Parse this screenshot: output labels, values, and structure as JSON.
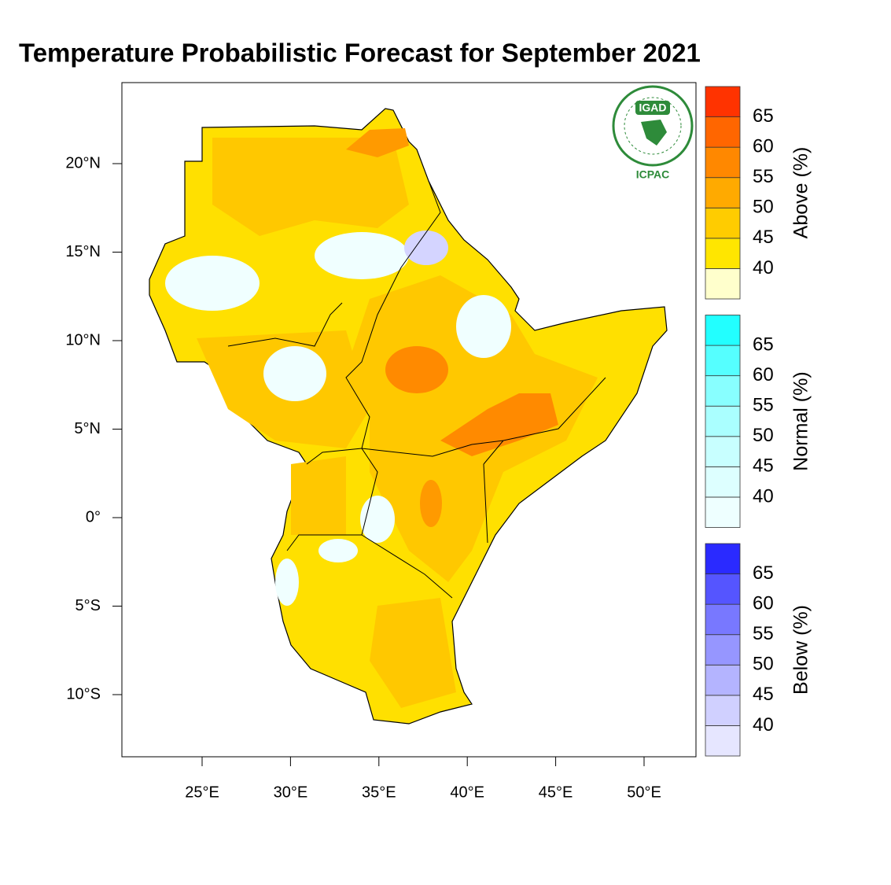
{
  "title": "Temperature Probabilistic Forecast for September 2021",
  "lat_ticks": [
    "20°N",
    "15°N",
    "10°N",
    "5°N",
    "0°",
    "5°S",
    "10°S"
  ],
  "lon_ticks": [
    "25°E",
    "30°E",
    "35°E",
    "40°E",
    "45°E",
    "50°E"
  ],
  "legends": [
    {
      "label": "Above (%)",
      "ticks": [
        "40",
        "45",
        "50",
        "55",
        "60",
        "65"
      ],
      "colors": [
        "#ffffcc",
        "#ffe600",
        "#ffcc00",
        "#ffaa00",
        "#ff8800",
        "#ff6600",
        "#ff3300"
      ]
    },
    {
      "label": "Normal (%)",
      "ticks": [
        "40",
        "45",
        "50",
        "55",
        "60",
        "65"
      ],
      "colors": [
        "#eeffff",
        "#ddffff",
        "#c8ffff",
        "#aaffff",
        "#88ffff",
        "#55ffff",
        "#22ffff"
      ]
    },
    {
      "label": "Below (%)",
      "ticks": [
        "40",
        "45",
        "50",
        "55",
        "60",
        "65"
      ],
      "colors": [
        "#e6e6ff",
        "#d0d0ff",
        "#b4b4ff",
        "#9696ff",
        "#7878ff",
        "#5555ff",
        "#2a2aff"
      ]
    }
  ],
  "logo": {
    "top": "IGAD",
    "bottom": "ICPAC"
  }
}
